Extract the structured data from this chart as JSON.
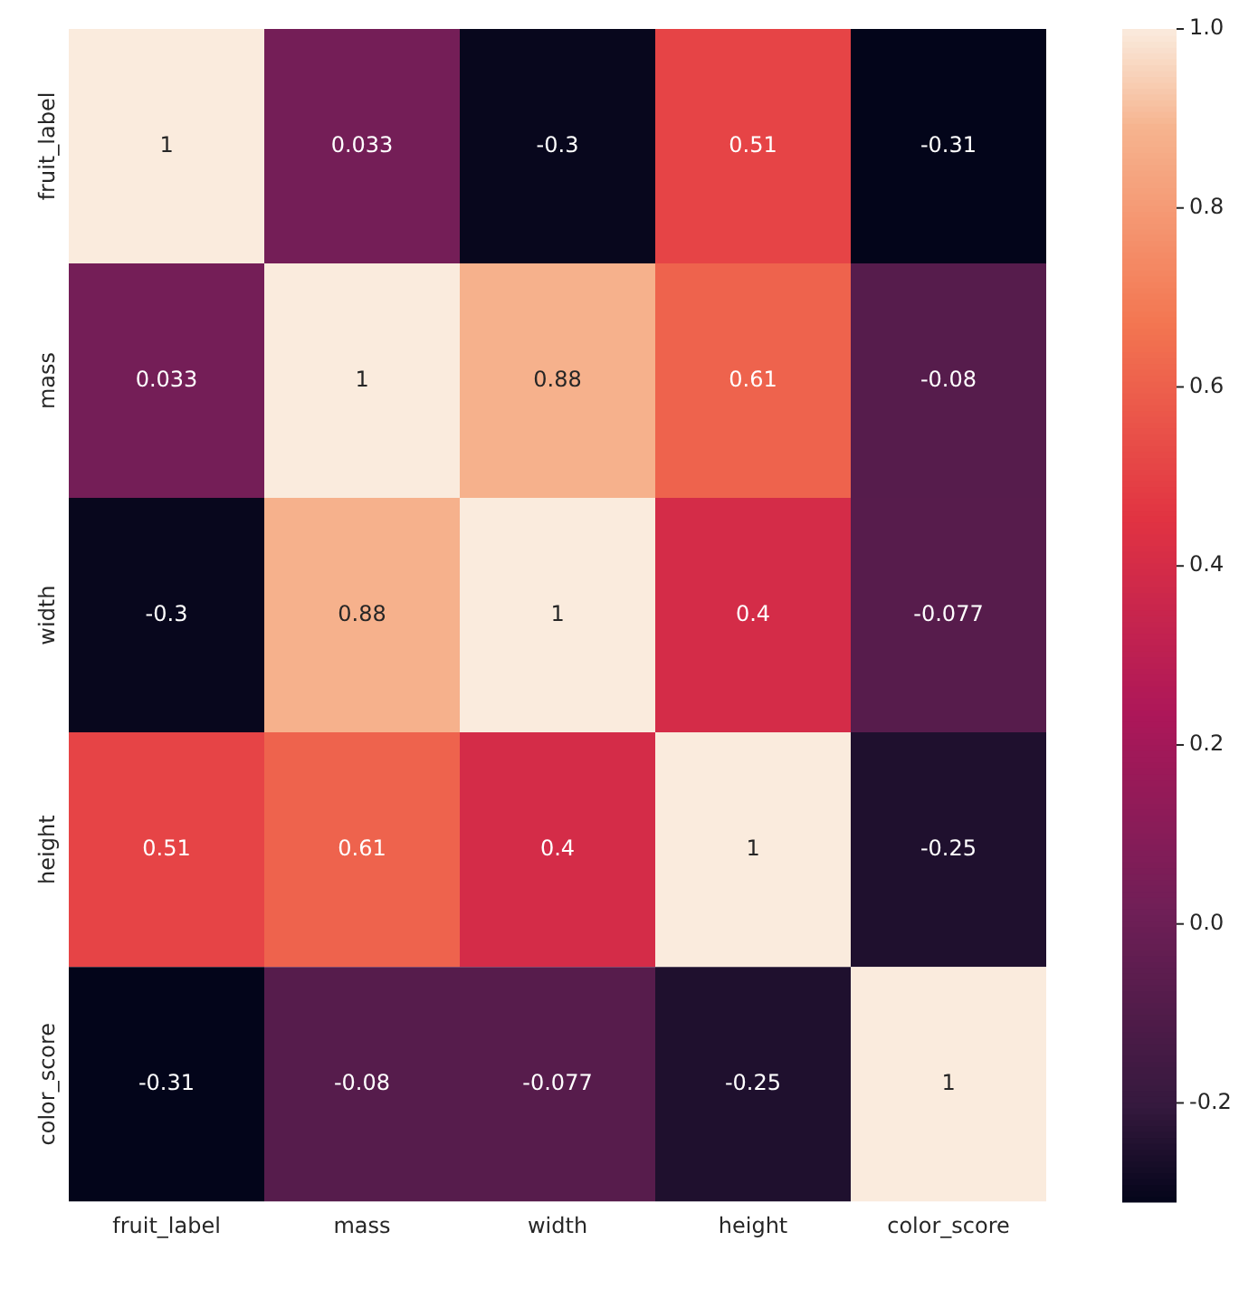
{
  "chart_data": {
    "type": "heatmap",
    "categories": [
      "fruit_label",
      "mass",
      "width",
      "height",
      "color_score"
    ],
    "y_categories": [
      "fruit_label",
      "mass",
      "width",
      "height",
      "color_score"
    ],
    "cells": [
      [
        1,
        0.033,
        -0.3,
        0.51,
        -0.31
      ],
      [
        0.033,
        1,
        0.88,
        0.61,
        -0.08
      ],
      [
        -0.3,
        0.88,
        1,
        0.4,
        -0.077
      ],
      [
        0.51,
        0.61,
        0.4,
        1,
        -0.25
      ],
      [
        -0.31,
        -0.08,
        -0.077,
        -0.25,
        1
      ]
    ],
    "data_labels": true,
    "clim": [
      -0.31,
      1
    ],
    "cticks": [
      -0.2,
      {
        "value": 0,
        "label": "0.0"
      },
      0.2,
      0.4,
      0.6,
      0.8,
      {
        "value": 1,
        "label": "1.0"
      }
    ]
  }
}
